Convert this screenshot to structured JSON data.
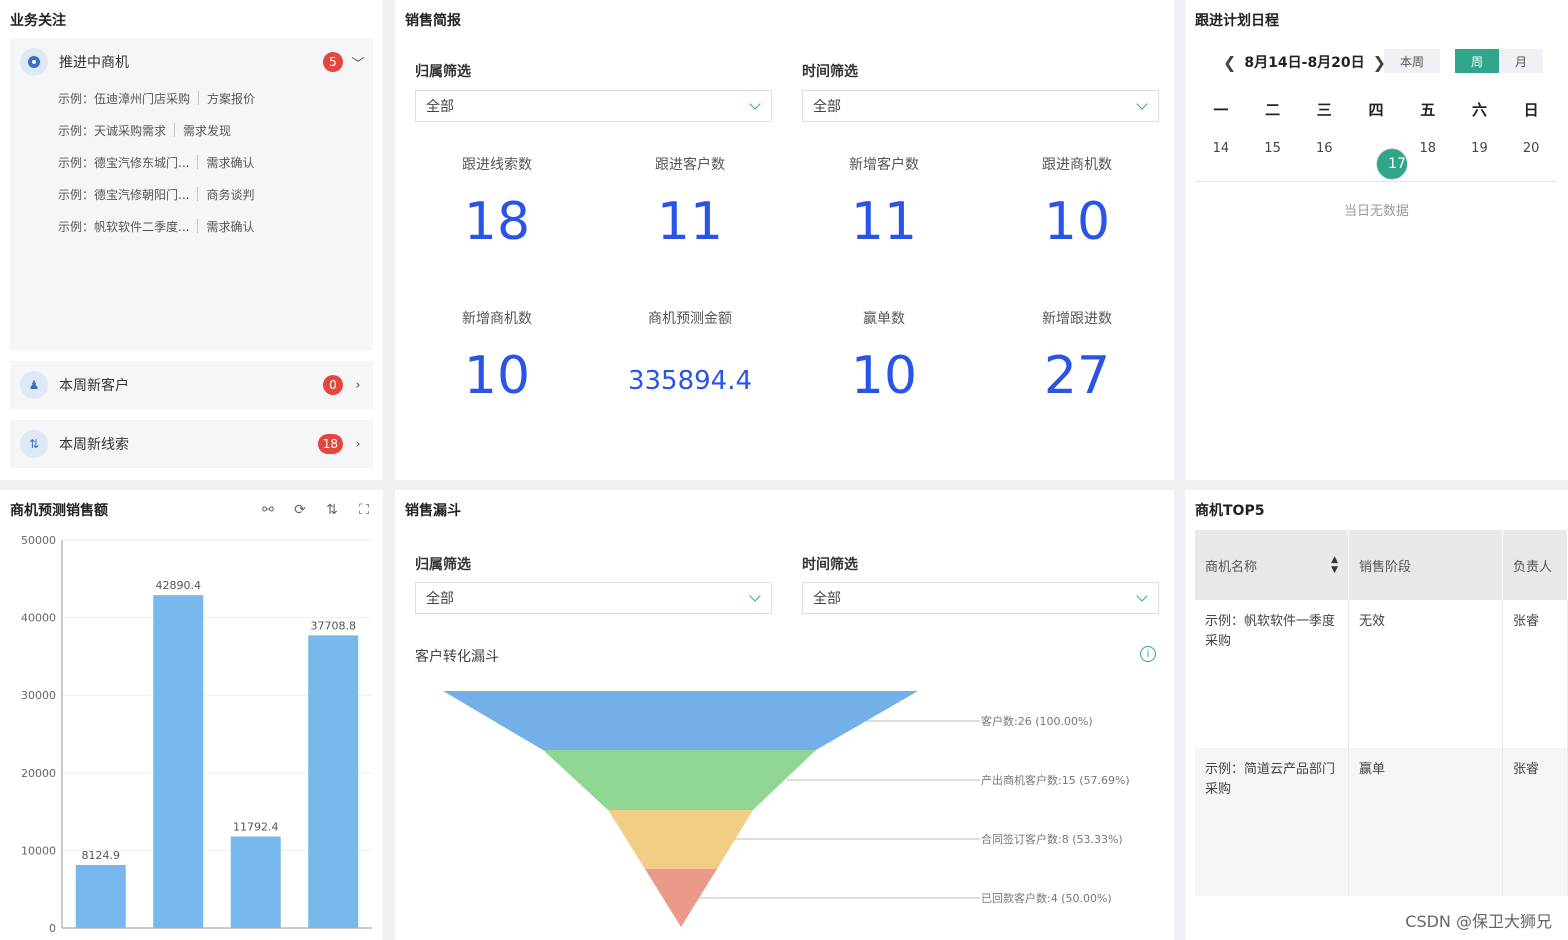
{
  "focus": {
    "title": "业务关注",
    "pipeline": {
      "label": "推进中商机",
      "count": "5"
    },
    "examples": [
      {
        "name": "示例：伍迪漳州门店采购",
        "stage": "方案报价"
      },
      {
        "name": "示例：天诚采购需求",
        "stage": "需求发现"
      },
      {
        "name": "示例：德宝汽修东城门...",
        "stage": "需求确认"
      },
      {
        "name": "示例：德宝汽修朝阳门...",
        "stage": "商务谈判"
      },
      {
        "name": "示例：帆软软件二季度...",
        "stage": "需求确认"
      }
    ],
    "new_customers": {
      "label": "本周新客户",
      "count": "0"
    },
    "new_leads": {
      "label": "本周新线索",
      "count": "18"
    }
  },
  "brief": {
    "title": "销售简报",
    "owner_filter": {
      "label": "归属筛选",
      "value": "全部"
    },
    "time_filter": {
      "label": "时间筛选",
      "value": "全部"
    },
    "metrics": [
      {
        "label": "跟进线索数",
        "value": "18"
      },
      {
        "label": "跟进客户数",
        "value": "11"
      },
      {
        "label": "新增客户数",
        "value": "11"
      },
      {
        "label": "跟进商机数",
        "value": "10"
      },
      {
        "label": "新增商机数",
        "value": "10"
      },
      {
        "label": "商机预测金额",
        "value": "335894.4"
      },
      {
        "label": "赢单数",
        "value": "10"
      },
      {
        "label": "新增跟进数",
        "value": "27"
      }
    ]
  },
  "schedule": {
    "title": "跟进计划日程",
    "range": "8月14日-8月20日",
    "btn_this_week": "本周",
    "btn_week": "周",
    "btn_month": "月",
    "weekdays": [
      "一",
      "二",
      "三",
      "四",
      "五",
      "六",
      "日"
    ],
    "days": [
      "14",
      "15",
      "16",
      "17",
      "18",
      "19",
      "20"
    ],
    "selected_day": "17",
    "empty": "当日无数据"
  },
  "forecast": {
    "title": "商机预测销售额"
  },
  "funnel": {
    "title": "销售漏斗",
    "owner_filter": {
      "label": "归属筛选",
      "value": "全部"
    },
    "time_filter": {
      "label": "时间筛选",
      "value": "全部"
    },
    "subtitle": "客户转化漏斗",
    "stages": [
      {
        "label": "客户数:26 (100.00%)",
        "color": "#74b0e8"
      },
      {
        "label": "产出商机客户数:15 (57.69%)",
        "color": "#8fd694"
      },
      {
        "label": "合同签订客户数:8 (53.33%)",
        "color": "#f2cd86"
      },
      {
        "label": "已回款客户数:4 (50.00%)",
        "color": "#eb9a8a"
      }
    ]
  },
  "top5": {
    "title": "商机TOP5",
    "headers": [
      "商机名称",
      "销售阶段",
      "负责人"
    ],
    "rows": [
      {
        "name": "示例：帆软软件一季度采购",
        "stage": "无效",
        "owner": "张睿"
      },
      {
        "name": "示例：简道云产品部门采购",
        "stage": "赢单",
        "owner": "张睿"
      }
    ]
  },
  "watermark": "CSDN @保卫大狮兄",
  "chart_data": {
    "type": "bar",
    "title": "商机预测销售额",
    "categories": [
      "",
      "",
      "",
      ""
    ],
    "values": [
      8124.9,
      42890.4,
      11792.4,
      37708.8
    ],
    "ylim": [
      0,
      50000
    ],
    "yticks": [
      0,
      10000,
      20000,
      30000,
      40000,
      50000
    ],
    "grid": true,
    "color": "#79b8ec"
  }
}
